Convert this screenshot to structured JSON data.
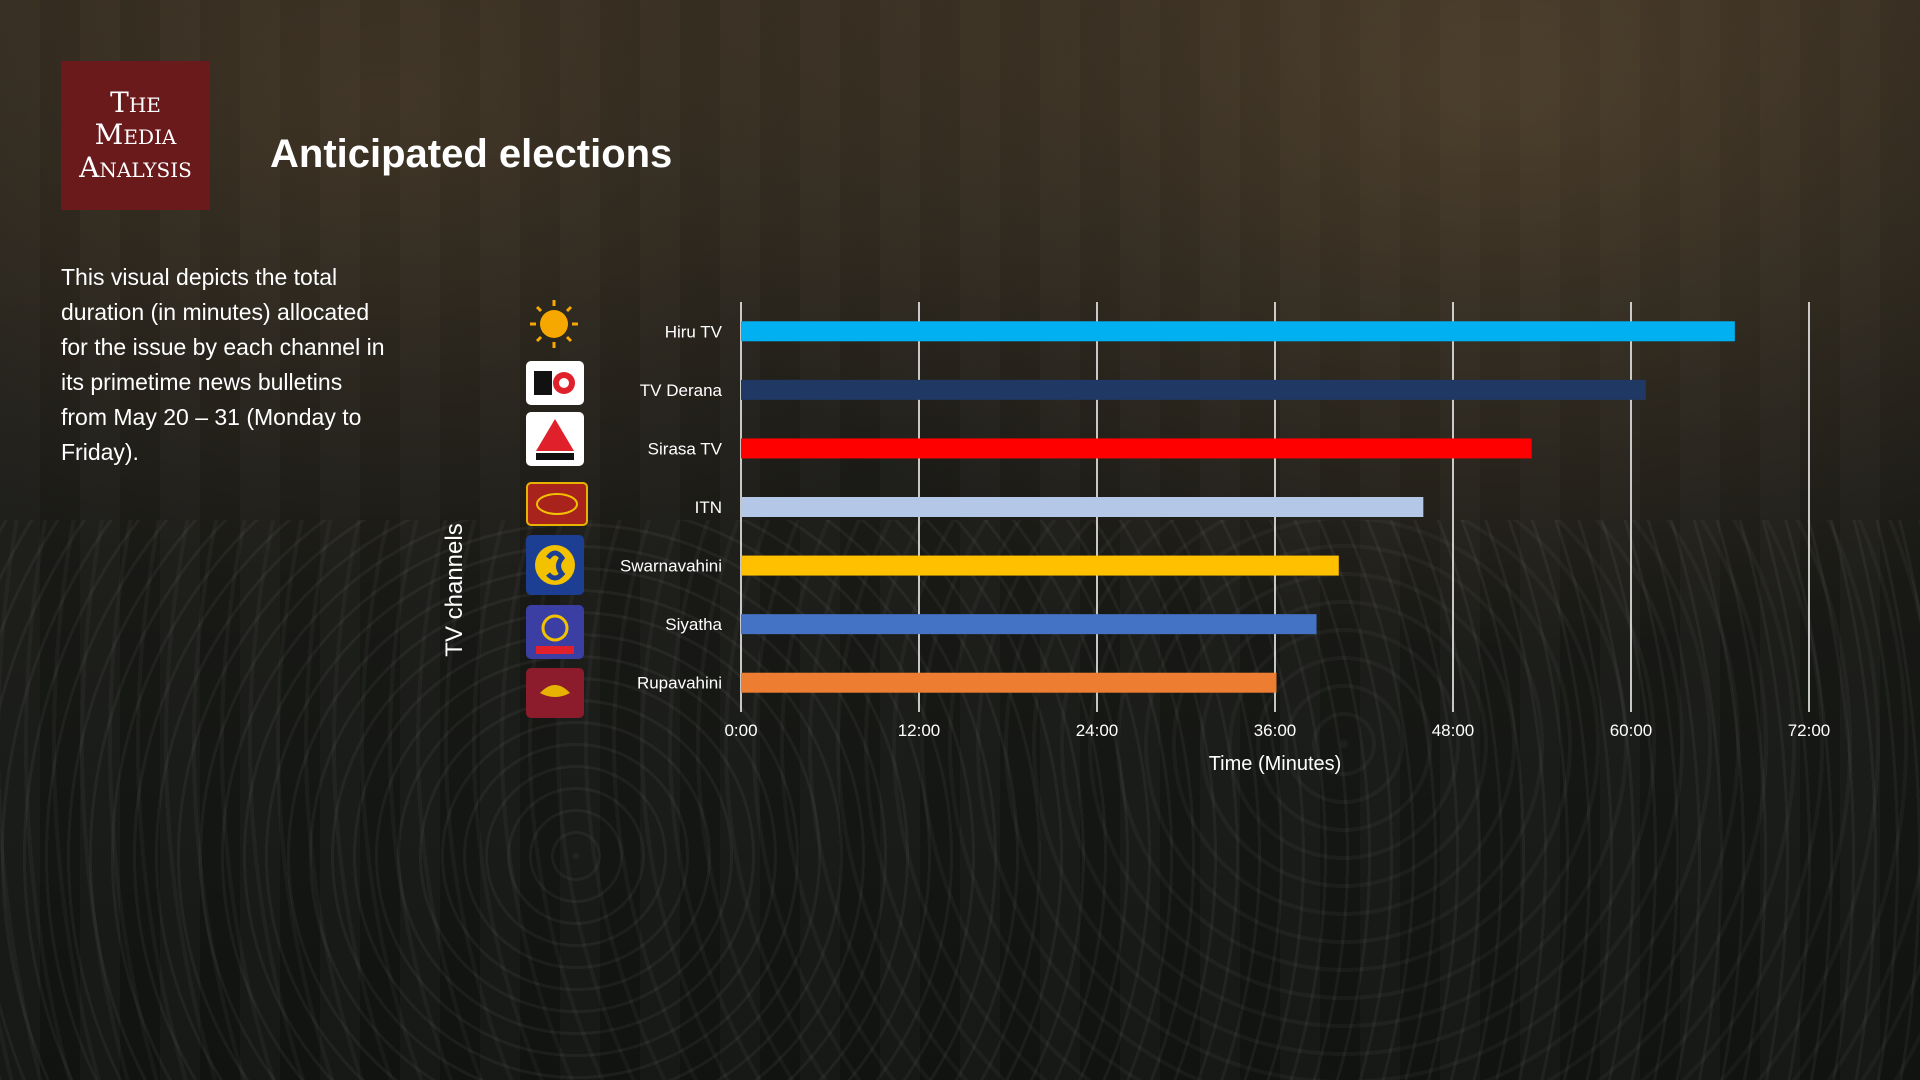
{
  "brand": {
    "line1": "The",
    "line2": "Media",
    "line3": "Analysis",
    "color": "#6b1a1c"
  },
  "title": "Anticipated elections",
  "description": "This visual depicts the total duration (in minutes) allocated for the issue by each channel in its primetime news bulletins from May 20 – 31 (Monday to Friday).",
  "chart_data": {
    "type": "bar",
    "orientation": "horizontal",
    "categories": [
      "Hiru TV",
      "TV Derana",
      "Sirasa TV",
      "ITN",
      "Swarnavahini",
      "Siyatha",
      "Rupavahini"
    ],
    "values": [
      67.0,
      61.0,
      53.3,
      46.0,
      40.3,
      38.8,
      36.1
    ],
    "value_units": "minutes",
    "colors": [
      "#00b0f0",
      "#203864",
      "#ff0000",
      "#b4c7e7",
      "#ffc000",
      "#4472c4",
      "#ed7d31"
    ],
    "xlabel": "Time (Minutes)",
    "ylabel": "TV channels",
    "xlim": [
      0,
      72
    ],
    "xticks": [
      0,
      12,
      24,
      36,
      48,
      60,
      72
    ],
    "xtick_labels": [
      "0:00",
      "12:00",
      "24:00",
      "36:00",
      "48:00",
      "60:00",
      "72:00"
    ],
    "grid": "vertical"
  },
  "channel_logos": [
    {
      "icon": "hiru-tv-logo-icon",
      "color": "#f7a800"
    },
    {
      "icon": "tv-derana-logo-icon",
      "color": "#ffffff"
    },
    {
      "icon": "sirasa-tv-logo-icon",
      "color": "#ffffff"
    },
    {
      "icon": "itn-logo-icon",
      "color": "#a8231c"
    },
    {
      "icon": "swarnavahini-logo-icon",
      "color": "#1c3f94"
    },
    {
      "icon": "siyatha-logo-icon",
      "color": "#3b3fa3"
    },
    {
      "icon": "rupavahini-logo-icon",
      "color": "#8c1c2c"
    }
  ]
}
